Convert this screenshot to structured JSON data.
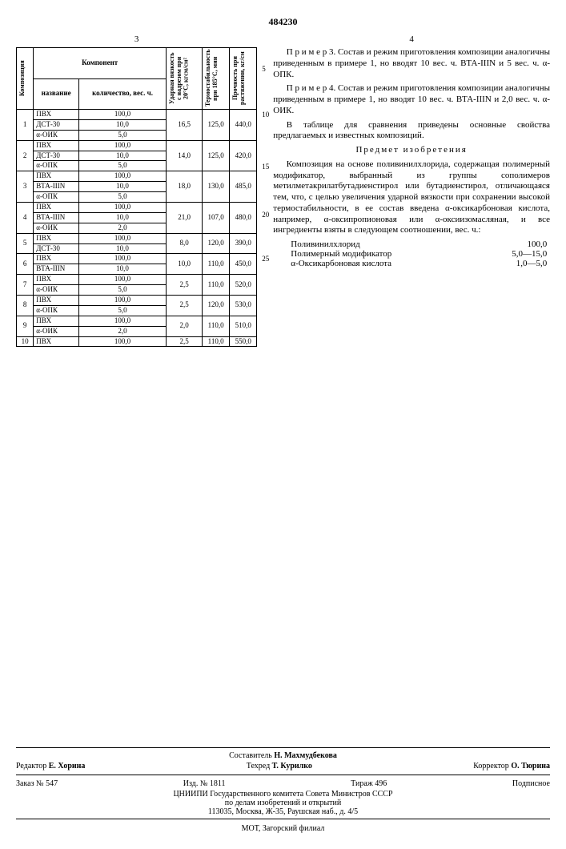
{
  "doc_number": "484230",
  "left_col_num": "3",
  "right_col_num": "4",
  "table": {
    "headers": {
      "composition": "Композиция",
      "component": "Компонент",
      "name": "название",
      "qty": "количество, вес. ч.",
      "impact": "Ударная вязкость с надрезом при 20°С, кгсм/см²",
      "thermo": "Термостабильность при 185°С, мин",
      "strength": "Прочность при растяжении, кг/см"
    },
    "rows": [
      {
        "n": "1",
        "comps": [
          [
            "ПВХ",
            "100,0"
          ],
          [
            "ДСТ-30",
            "10,0"
          ],
          [
            "α-ОИК",
            "5,0"
          ]
        ],
        "v": [
          "16,5",
          "125,0",
          "440,0"
        ]
      },
      {
        "n": "2",
        "comps": [
          [
            "ПВХ",
            "100,0"
          ],
          [
            "ДСТ-30",
            "10,0"
          ],
          [
            "α-ОПК",
            "5,0"
          ]
        ],
        "v": [
          "14,0",
          "125,0",
          "420,0"
        ]
      },
      {
        "n": "3",
        "comps": [
          [
            "ПВХ",
            "100,0"
          ],
          [
            "ВТА-IIIN",
            "10,0"
          ],
          [
            "α-ОПК",
            "5,0"
          ]
        ],
        "v": [
          "18,0",
          "130,0",
          "485,0"
        ]
      },
      {
        "n": "4",
        "comps": [
          [
            "ПВХ",
            "100,0"
          ],
          [
            "ВТА-IIIN",
            "10,0"
          ],
          [
            "α-ОИК",
            "2,0"
          ]
        ],
        "v": [
          "21,0",
          "107,0",
          "480,0"
        ]
      },
      {
        "n": "5",
        "comps": [
          [
            "ПВХ",
            "100,0"
          ],
          [
            "ДСТ-30",
            "10,0"
          ]
        ],
        "v": [
          "8,0",
          "120,0",
          "390,0"
        ]
      },
      {
        "n": "6",
        "comps": [
          [
            "ПВХ",
            "100,0"
          ],
          [
            "ВТА-IIIN",
            "10,0"
          ]
        ],
        "v": [
          "10,0",
          "110,0",
          "450,0"
        ]
      },
      {
        "n": "7",
        "comps": [
          [
            "ПВХ",
            "100,0"
          ],
          [
            "α-ОИК",
            "5,0"
          ]
        ],
        "v": [
          "2,5",
          "110,0",
          "520,0"
        ]
      },
      {
        "n": "8",
        "comps": [
          [
            "ПВХ",
            "100,0"
          ],
          [
            "α-ОПК",
            "5,0"
          ]
        ],
        "v": [
          "2,5",
          "120,0",
          "530,0"
        ]
      },
      {
        "n": "9",
        "comps": [
          [
            "ПВХ",
            "100,0"
          ],
          [
            "α-ОИК",
            "2,0"
          ]
        ],
        "v": [
          "2,0",
          "110,0",
          "510,0"
        ]
      },
      {
        "n": "10",
        "comps": [
          [
            "ПВХ",
            "100,0"
          ]
        ],
        "v": [
          "2,5",
          "110,0",
          "550,0"
        ]
      }
    ]
  },
  "text": {
    "p1": "П р и м е р 3. Состав и режим приготовления композиции аналогичны приведенным в примере 1, но вводят 10 вес. ч. ВТА-IIIN и 5 вес. ч. α-ОПК.",
    "p2": "П р и м е р 4. Состав и режим приготовления композиции аналогичны приведенным в примере 1, но вводят 10 вес. ч. ВТА-IIIN и 2,0 вес. ч. α-ОИК.",
    "p3": "В таблице для сравнения приведены основные свойства предлагаемых и известных композиций.",
    "subject_title": "Предмет изобретения",
    "p4": "Композиция на основе поливинилхлорида, содержащая полимерный модификатор, выбранный из группы сополимеров метилметакрилатбутадиенстирол или бутадиенстирол, отличающаяся тем, что, с целью увеличения ударной вязкости при сохранении высокой термостабильности, в ее состав введена α-оксикарбоновая кислота, например, α-оксипропионовая или α-оксиизомасляная, и все ингредиенты взяты в следующем соотношении, вес. ч.:",
    "ingredients": [
      [
        "Поливинилхлорид",
        "100,0"
      ],
      [
        "Полимерный модификатор",
        "5,0—15,0"
      ],
      [
        "α-Оксикарбоновая кислота",
        "1,0—5,0"
      ]
    ],
    "line_marks": [
      "5",
      "10",
      "15",
      "20",
      "25"
    ]
  },
  "footer": {
    "compiler_label": "Составитель",
    "compiler": "Н. Махмудбекова",
    "editor_label": "Редактор",
    "editor": "Е. Хорина",
    "techred_label": "Техред",
    "techred": "Т. Курилко",
    "corrector_label": "Корректор",
    "corrector": "О. Тюрина",
    "order_label": "Заказ №",
    "order": "547",
    "izd_label": "Изд. №",
    "izd": "1811",
    "tirage_label": "Тираж",
    "tirage": "496",
    "subscription": "Подписное",
    "org1": "ЦНИИПИ Государственного комитета Совета Министров СССР",
    "org2": "по делам изобретений и открытий",
    "addr": "113035, Москва, Ж-35, Раушская наб., д. 4/5",
    "printer": "МОТ, Загорский филиал"
  }
}
